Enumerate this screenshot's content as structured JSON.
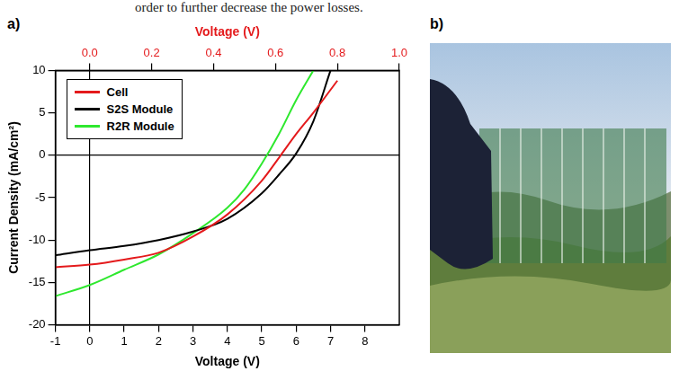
{
  "header_text": "order to further decrease the power losses.",
  "panel_labels": [
    "a)",
    "b)"
  ],
  "chart_data": {
    "type": "line",
    "xlabel": "Voltage (V)",
    "x2label": "Voltage (V)",
    "ylabel": "Current Density (mA/cm²)",
    "xlim": [
      -1,
      9
    ],
    "xticks": [
      -1,
      0,
      1,
      2,
      3,
      4,
      5,
      6,
      7,
      8
    ],
    "x2lim": [
      -0.111,
      1.0
    ],
    "x2ticks": [
      {
        "value": 0,
        "label": "0.0"
      },
      {
        "value": 0.2,
        "label": "0.2"
      },
      {
        "value": 0.4,
        "label": "0.4"
      },
      {
        "value": 0.6,
        "label": "0.6"
      },
      {
        "value": 0.8,
        "label": "0.8"
      },
      {
        "value": 1.0,
        "label": "1.0"
      }
    ],
    "ylim": [
      -20,
      10
    ],
    "yticks": [
      -20,
      -15,
      -10,
      -5,
      0,
      5,
      10
    ],
    "grid": false,
    "legend": "upper left",
    "series": [
      {
        "name": "Cell",
        "color": "#e41a1c",
        "axis": "x2",
        "x": [
          -0.111,
          0.0,
          0.111,
          0.222,
          0.333,
          0.444,
          0.556,
          0.617,
          0.667,
          0.722,
          0.8
        ],
        "values": [
          -13.2,
          -12.9,
          -12.3,
          -11.5,
          -9.6,
          -7.0,
          -3.0,
          0.0,
          2.5,
          5.0,
          8.8
        ]
      },
      {
        "name": "S2S Module",
        "color": "#000000",
        "x": [
          -1,
          0,
          1,
          2,
          3,
          4,
          5,
          5.5,
          6,
          6.5,
          7
        ],
        "values": [
          -11.8,
          -11.2,
          -10.7,
          -10.0,
          -9.0,
          -7.5,
          -4.5,
          -2.3,
          0.2,
          4.0,
          10.0
        ]
      },
      {
        "name": "R2R Module",
        "color": "#2ee82e",
        "x": [
          -1,
          0,
          1,
          2,
          3,
          4,
          4.5,
          5,
          5.5,
          6,
          6.5
        ],
        "values": [
          -16.6,
          -15.3,
          -13.5,
          -11.7,
          -9.2,
          -6.2,
          -4.0,
          -1.0,
          2.5,
          6.5,
          10.0
        ]
      }
    ]
  }
}
